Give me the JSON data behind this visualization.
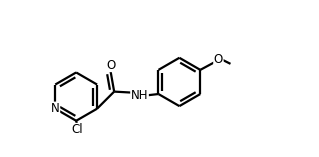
{
  "bg_color": "#ffffff",
  "line_color": "#000000",
  "line_width": 1.6,
  "font_size": 8.5,
  "figsize": [
    3.19,
    1.57
  ],
  "dpi": 100,
  "xlim": [
    0.0,
    10.5
  ],
  "ylim": [
    -1.0,
    5.5
  ]
}
